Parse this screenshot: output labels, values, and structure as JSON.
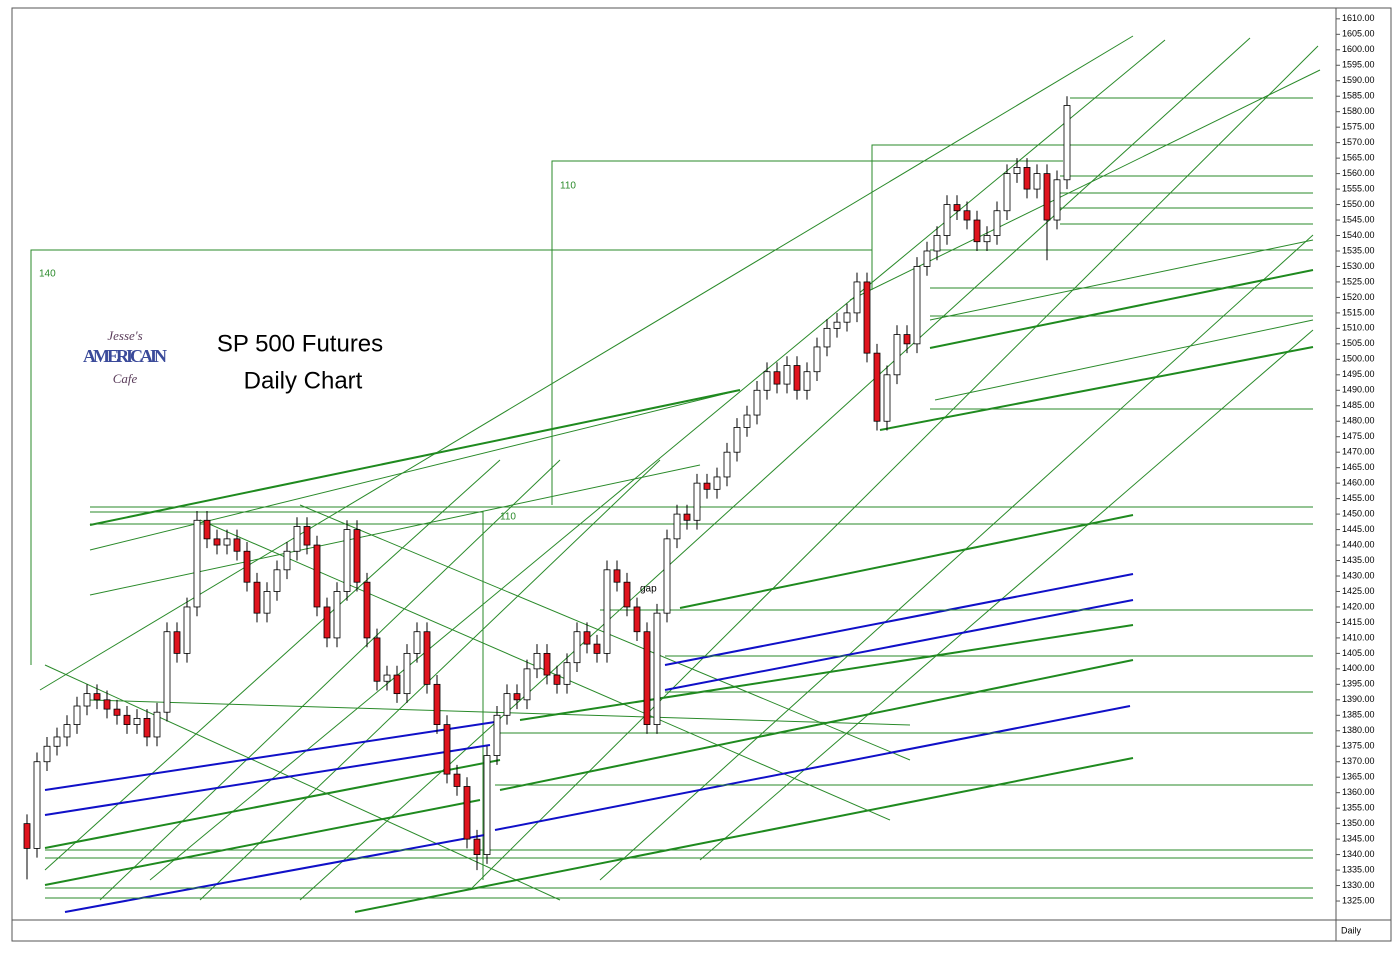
{
  "chart_data": {
    "type": "candlestick",
    "title": "SP 500 Futures",
    "subtitle": "Daily Chart",
    "period": "Daily",
    "logo": {
      "top": "Jesse's",
      "middle": "AMERICAIN",
      "bottom": "Cafe"
    },
    "annotations": [
      "140",
      "110",
      "110",
      "gap"
    ],
    "up_color": "#ffffff",
    "down_color": "#e0141e",
    "open": [
      1350,
      1342,
      1370,
      1375,
      1378,
      1382,
      1388,
      1392,
      1390,
      1387,
      1385,
      1382,
      1384,
      1378,
      1386,
      1412,
      1405,
      1420,
      1448,
      1442,
      1440,
      1442,
      1438,
      1428,
      1418,
      1425,
      1432,
      1438,
      1446,
      1440,
      1420,
      1410,
      1425,
      1445,
      1428,
      1410,
      1396,
      1398,
      1392,
      1405,
      1412,
      1395,
      1382,
      1366,
      1362,
      1345,
      1340,
      1372,
      1385,
      1392,
      1390,
      1400,
      1405,
      1398,
      1395,
      1402,
      1412,
      1408,
      1405,
      1432,
      1428,
      1420,
      1412,
      1382,
      1418,
      1442,
      1450,
      1448,
      1460,
      1458,
      1462,
      1470,
      1478,
      1482,
      1490,
      1496,
      1492,
      1498,
      1490,
      1496,
      1504,
      1510,
      1512,
      1515,
      1525,
      1502,
      1480,
      1495,
      1508,
      1505,
      1530,
      1535,
      1540,
      1550,
      1548,
      1545,
      1538,
      1540,
      1548,
      1560,
      1562,
      1555,
      1560,
      1545,
      1558
    ],
    "high": [
      1353,
      1373,
      1378,
      1381,
      1385,
      1391,
      1395,
      1395,
      1393,
      1390,
      1388,
      1387,
      1387,
      1389,
      1415,
      1415,
      1423,
      1451,
      1451,
      1445,
      1445,
      1445,
      1441,
      1431,
      1428,
      1435,
      1441,
      1449,
      1449,
      1443,
      1423,
      1428,
      1448,
      1448,
      1431,
      1413,
      1401,
      1401,
      1408,
      1415,
      1415,
      1398,
      1385,
      1369,
      1365,
      1348,
      1375,
      1388,
      1395,
      1395,
      1403,
      1408,
      1408,
      1401,
      1405,
      1415,
      1415,
      1411,
      1435,
      1435,
      1431,
      1423,
      1415,
      1421,
      1445,
      1453,
      1453,
      1463,
      1463,
      1465,
      1473,
      1481,
      1485,
      1493,
      1499,
      1499,
      1501,
      1501,
      1499,
      1507,
      1513,
      1515,
      1518,
      1528,
      1528,
      1505,
      1498,
      1511,
      1511,
      1533,
      1538,
      1543,
      1553,
      1553,
      1551,
      1548,
      1543,
      1551,
      1563,
      1565,
      1565,
      1563,
      1563,
      1561,
      1585
    ],
    "low": [
      1332,
      1339,
      1367,
      1372,
      1375,
      1379,
      1385,
      1387,
      1384,
      1382,
      1379,
      1379,
      1375,
      1375,
      1383,
      1402,
      1402,
      1417,
      1439,
      1437,
      1437,
      1435,
      1425,
      1415,
      1415,
      1422,
      1429,
      1435,
      1437,
      1417,
      1407,
      1407,
      1422,
      1425,
      1407,
      1393,
      1393,
      1389,
      1389,
      1402,
      1392,
      1379,
      1363,
      1359,
      1342,
      1335,
      1337,
      1369,
      1382,
      1387,
      1387,
      1397,
      1395,
      1392,
      1392,
      1399,
      1405,
      1402,
      1402,
      1425,
      1417,
      1409,
      1379,
      1379,
      1415,
      1439,
      1445,
      1445,
      1455,
      1455,
      1459,
      1467,
      1475,
      1479,
      1487,
      1489,
      1489,
      1487,
      1487,
      1493,
      1501,
      1507,
      1509,
      1512,
      1499,
      1477,
      1477,
      1492,
      1502,
      1502,
      1527,
      1532,
      1537,
      1545,
      1542,
      1535,
      1535,
      1537,
      1545,
      1557,
      1552,
      1552,
      1532,
      1542,
      1555
    ],
    "close": [
      1342,
      1370,
      1375,
      1378,
      1382,
      1388,
      1392,
      1390,
      1387,
      1385,
      1382,
      1384,
      1378,
      1386,
      1412,
      1405,
      1420,
      1448,
      1442,
      1440,
      1442,
      1438,
      1428,
      1418,
      1425,
      1432,
      1438,
      1446,
      1440,
      1420,
      1410,
      1425,
      1445,
      1428,
      1410,
      1396,
      1398,
      1392,
      1405,
      1412,
      1395,
      1382,
      1366,
      1362,
      1345,
      1340,
      1372,
      1385,
      1392,
      1390,
      1400,
      1405,
      1398,
      1395,
      1402,
      1412,
      1408,
      1405,
      1432,
      1428,
      1420,
      1412,
      1382,
      1418,
      1442,
      1450,
      1448,
      1460,
      1458,
      1462,
      1470,
      1478,
      1482,
      1490,
      1496,
      1492,
      1498,
      1490,
      1496,
      1504,
      1510,
      1512,
      1515,
      1525,
      1502,
      1480,
      1495,
      1508,
      1505,
      1530,
      1535,
      1540,
      1550,
      1548,
      1545,
      1538,
      1540,
      1548,
      1560,
      1562,
      1555,
      1560,
      1545,
      1558,
      1582
    ],
    "ylim": [
      1320,
      1613.5
    ],
    "yticks": [
      {
        "value": 1325,
        "label": "1325.00"
      },
      {
        "value": 1330,
        "label": "1330.00"
      },
      {
        "value": 1335,
        "label": "1335.00"
      },
      {
        "value": 1340,
        "label": "1340.00"
      },
      {
        "value": 1345,
        "label": "1345.00"
      },
      {
        "value": 1350,
        "label": "1350.00"
      },
      {
        "value": 1355,
        "label": "1355.00"
      },
      {
        "value": 1360,
        "label": "1360.00"
      },
      {
        "value": 1365,
        "label": "1365.00"
      },
      {
        "value": 1370,
        "label": "1370.00"
      },
      {
        "value": 1375,
        "label": "1375.00"
      },
      {
        "value": 1380,
        "label": "1380.00"
      },
      {
        "value": 1385,
        "label": "1385.00"
      },
      {
        "value": 1390,
        "label": "1390.00"
      },
      {
        "value": 1395,
        "label": "1395.00"
      },
      {
        "value": 1400,
        "label": "1400.00"
      },
      {
        "value": 1405,
        "label": "1405.00"
      },
      {
        "value": 1410,
        "label": "1410.00"
      },
      {
        "value": 1415,
        "label": "1415.00"
      },
      {
        "value": 1420,
        "label": "1420.00"
      },
      {
        "value": 1425,
        "label": "1425.00"
      },
      {
        "value": 1430,
        "label": "1430.00"
      },
      {
        "value": 1435,
        "label": "1435.00"
      },
      {
        "value": 1440,
        "label": "1440.00"
      },
      {
        "value": 1445,
        "label": "1445.00"
      },
      {
        "value": 1450,
        "label": "1450.00"
      },
      {
        "value": 1455,
        "label": "1455.00"
      },
      {
        "value": 1460,
        "label": "1460.00"
      },
      {
        "value": 1465,
        "label": "1465.00"
      },
      {
        "value": 1470,
        "label": "1470.00"
      },
      {
        "value": 1475,
        "label": "1475.00"
      },
      {
        "value": 1480,
        "label": "1480.00"
      },
      {
        "value": 1485,
        "label": "1485.00"
      },
      {
        "value": 1490,
        "label": "1490.00"
      },
      {
        "value": 1495,
        "label": "1495.00"
      },
      {
        "value": 1500,
        "label": "1500.00"
      },
      {
        "value": 1505,
        "label": "1505.00"
      },
      {
        "value": 1510,
        "label": "1510.00"
      },
      {
        "value": 1515,
        "label": "1515.00"
      },
      {
        "value": 1520,
        "label": "1520.00"
      },
      {
        "value": 1525,
        "label": "1525.00"
      },
      {
        "value": 1530,
        "label": "1530.00"
      },
      {
        "value": 1535,
        "label": "1535.00"
      },
      {
        "value": 1540,
        "label": "1540.00"
      },
      {
        "value": 1545,
        "label": "1545.00"
      },
      {
        "value": 1550,
        "label": "1550.00"
      },
      {
        "value": 1555,
        "label": "1555.00"
      },
      {
        "value": 1560,
        "label": "1560.00"
      },
      {
        "value": 1565,
        "label": "1565.00"
      },
      {
        "value": 1570,
        "label": "1570.00"
      },
      {
        "value": 1575,
        "label": "1575.00"
      },
      {
        "value": 1580,
        "label": "1580.00"
      },
      {
        "value": 1585,
        "label": "1585.00"
      },
      {
        "value": 1590,
        "label": "1590.00"
      },
      {
        "value": 1595,
        "label": "1595.00"
      },
      {
        "value": 1600,
        "label": "1600.00"
      },
      {
        "value": 1605,
        "label": "1605.00"
      },
      {
        "value": 1610,
        "label": "1610.00"
      }
    ]
  }
}
